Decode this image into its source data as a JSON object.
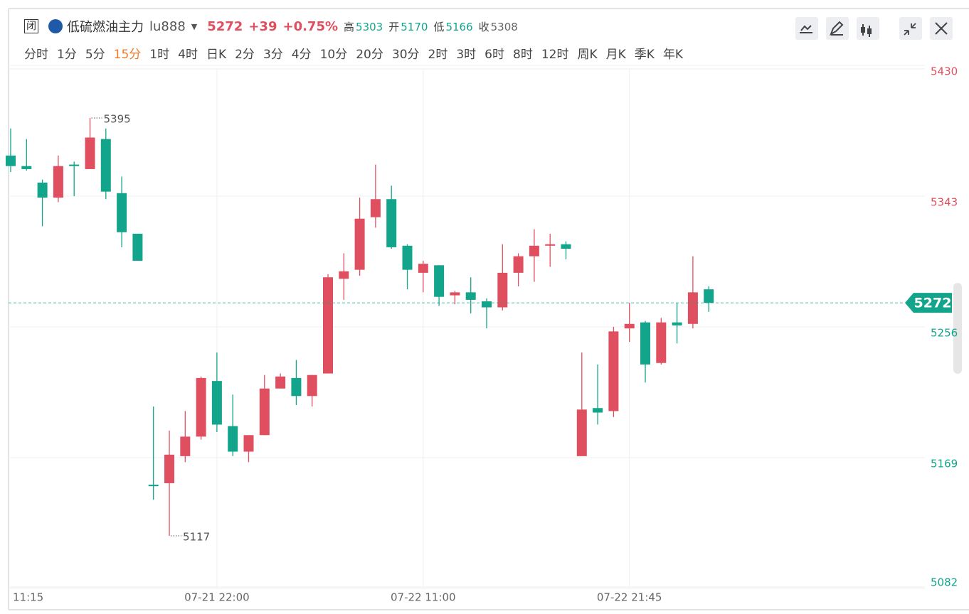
{
  "header": {
    "status": "闭",
    "name": "低硫燃油主力",
    "code": "lu888",
    "price": "5272",
    "change": "+39",
    "change_pct": "+0.75%",
    "stats": [
      {
        "label": "高",
        "value": "5303"
      },
      {
        "label": "开",
        "value": "5170"
      },
      {
        "label": "低",
        "value": "5166"
      },
      {
        "label": "收",
        "value": "5308"
      }
    ],
    "intervals": [
      "分时",
      "1分",
      "5分",
      "15分",
      "1时",
      "4时",
      "日K",
      "2分",
      "3分",
      "4分",
      "10分",
      "20分",
      "30分",
      "2时",
      "3时",
      "6时",
      "8时",
      "12时",
      "周K",
      "月K",
      "季K",
      "年K"
    ],
    "active_interval": 3
  },
  "chart_data": {
    "type": "candlestick",
    "categories": [
      "11:15",
      null,
      null,
      null,
      null,
      null,
      null,
      null,
      null,
      null,
      null,
      null,
      null,
      "07-21 22:00",
      null,
      null,
      null,
      null,
      null,
      null,
      null,
      null,
      null,
      null,
      null,
      null,
      "07-22 11:00",
      null,
      null,
      null,
      null,
      null,
      null,
      null,
      null,
      null,
      null,
      null,
      null,
      "07-22 21:45",
      null,
      null,
      null,
      null,
      null
    ],
    "open": [
      5370,
      5363,
      5352,
      5342,
      5364,
      5361,
      5381,
      5345,
      5318,
      5151,
      5152,
      5170,
      5183,
      5220,
      5190,
      5173,
      5184,
      5215,
      5222,
      5210,
      5225,
      5288,
      5294,
      5329,
      5341,
      5310,
      5292,
      5297,
      5277,
      5279,
      5273,
      5269,
      5292,
      5303,
      5310,
      5311,
      5170,
      5202,
      5200,
      5255,
      5259,
      5232,
      5259,
      5258,
      5281
    ],
    "high": [
      5388,
      5381,
      5354,
      5370,
      5366,
      5395,
      5388,
      5356,
      5318,
      5203,
      5187,
      5200,
      5223,
      5239,
      5211,
      5184,
      5224,
      5225,
      5234,
      5224,
      5291,
      5305,
      5342,
      5364,
      5350,
      5311,
      5300,
      5297,
      5280,
      5289,
      5275,
      5311,
      5305,
      5321,
      5318,
      5313,
      5239,
      5231,
      5256,
      5272,
      5260,
      5262,
      5272,
      5303,
      5283
    ],
    "low": [
      5359,
      5360,
      5323,
      5339,
      5343,
      5361,
      5341,
      5309,
      5300,
      5141,
      5117,
      5166,
      5181,
      5186,
      5170,
      5166,
      5184,
      5215,
      5204,
      5203,
      5225,
      5274,
      5290,
      5322,
      5308,
      5281,
      5279,
      5270,
      5271,
      5265,
      5255,
      5267,
      5283,
      5286,
      5296,
      5301,
      5170,
      5191,
      5196,
      5246,
      5219,
      5231,
      5245,
      5255,
      5266
    ],
    "close": [
      5363,
      5361,
      5342,
      5363,
      5363,
      5382,
      5346,
      5319,
      5300,
      5150,
      5171,
      5183,
      5222,
      5191,
      5173,
      5184,
      5215,
      5223,
      5210,
      5224,
      5289,
      5293,
      5328,
      5341,
      5309,
      5294,
      5298,
      5276,
      5279,
      5274,
      5269,
      5292,
      5303,
      5310,
      5311,
      5308,
      5201,
      5199,
      5253,
      5258,
      5231,
      5259,
      5257,
      5279,
      5272
    ],
    "up_color": "#e04f5f",
    "down_color": "#13a58b",
    "ylim": [
      5082,
      5430
    ],
    "yticks": [
      5430,
      5343,
      5256,
      5169,
      5082
    ],
    "last_price": 5272,
    "high_label": 5395,
    "low_label": 5117,
    "grid": true
  }
}
